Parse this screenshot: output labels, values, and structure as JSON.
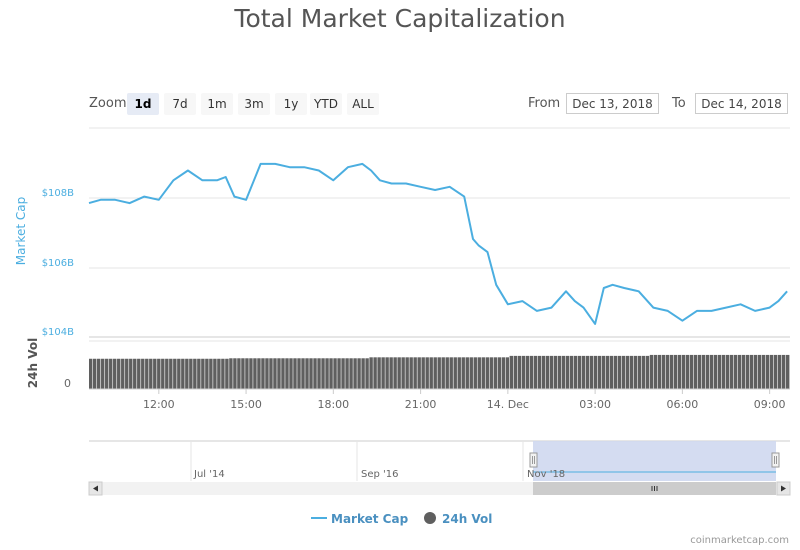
{
  "colors": {
    "line": "#4baee0",
    "volume": "#5f5f5f",
    "navigator_mask": "#cfd8ef",
    "axis_text": "#666666"
  },
  "zoom": {
    "label": "Zoom",
    "buttons": [
      "1d",
      "7d",
      "1m",
      "3m",
      "1y",
      "YTD",
      "ALL"
    ],
    "selected": "1d"
  },
  "range": {
    "from_label": "From",
    "from_value": "Dec 13, 2018",
    "to_label": "To",
    "to_value": "Dec 14, 2018"
  },
  "credit": "coinmarketcap.com",
  "chart_data": {
    "type": "line",
    "title": "Total Market Capitalization",
    "x_ticks": [
      "12:00",
      "15:00",
      "18:00",
      "21:00",
      "14. Dec",
      "03:00",
      "06:00",
      "09:00"
    ],
    "x_tick_hours": [
      12,
      15,
      18,
      21,
      24,
      27,
      30,
      33
    ],
    "xlim_hours": [
      9.6,
      33.7
    ],
    "market_cap": {
      "name": "Market Cap",
      "ylabel": "Market Cap",
      "y_ticks": [
        "$104B",
        "$106B",
        "$108B"
      ],
      "y_tick_values": [
        104,
        106,
        108
      ],
      "ylim": [
        104,
        110.4
      ],
      "x_hours": [
        9.6,
        10.0,
        10.5,
        11.0,
        11.5,
        12.0,
        12.5,
        13.0,
        13.5,
        14.0,
        14.3,
        14.6,
        15.0,
        15.5,
        16.0,
        16.5,
        17.0,
        17.5,
        18.0,
        18.5,
        19.0,
        19.3,
        19.6,
        20.0,
        20.5,
        21.0,
        21.5,
        22.0,
        22.5,
        22.8,
        23.0,
        23.3,
        23.6,
        24.0,
        24.5,
        25.0,
        25.5,
        26.0,
        26.3,
        26.6,
        27.0,
        27.3,
        27.6,
        28.0,
        28.5,
        29.0,
        29.5,
        30.0,
        30.5,
        31.0,
        31.5,
        32.0,
        32.5,
        33.0,
        33.3,
        33.6
      ],
      "values": [
        108.1,
        108.2,
        108.2,
        108.1,
        108.3,
        108.2,
        108.8,
        109.1,
        108.8,
        108.8,
        108.9,
        108.3,
        108.2,
        109.3,
        109.3,
        109.2,
        109.2,
        109.1,
        108.8,
        109.2,
        109.3,
        109.1,
        108.8,
        108.7,
        108.7,
        108.6,
        108.5,
        108.6,
        108.3,
        107.0,
        106.8,
        106.6,
        105.6,
        105.0,
        105.1,
        104.8,
        104.9,
        105.4,
        105.1,
        104.9,
        104.4,
        105.5,
        105.6,
        105.5,
        105.4,
        104.9,
        104.8,
        104.5,
        104.8,
        104.8,
        104.9,
        105.0,
        104.8,
        104.9,
        105.1,
        105.4
      ]
    },
    "volume": {
      "name": "24h Vol",
      "ylabel": "24h Vol",
      "y_ticks": [
        "0"
      ],
      "relative_levels": [
        0.63,
        0.64,
        0.66,
        0.69,
        0.71
      ]
    },
    "navigator": {
      "x_ticks": [
        "Jul '14",
        "Sep '16",
        "Nov '18"
      ]
    },
    "legend": {
      "placement": "bottom-center",
      "items": [
        "Market Cap",
        "24h Vol"
      ]
    }
  }
}
